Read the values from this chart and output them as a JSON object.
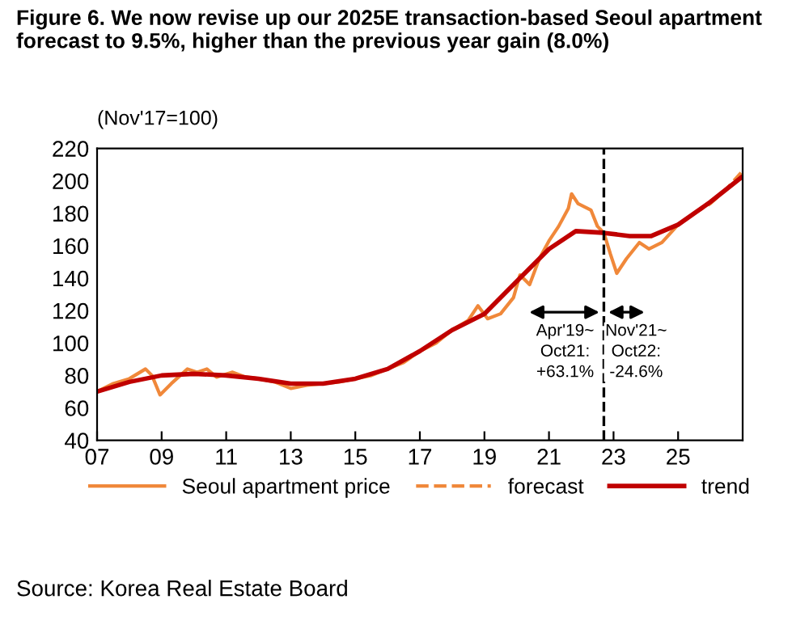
{
  "chart_data": {
    "type": "line",
    "title": "Figure 6. We now revise up our 2025E transaction-based Seoul apartment forecast to 9.5%, higher than the previous year gain (8.0%)",
    "ylabel": "(Nov'17=100)",
    "series": [
      {
        "name": "Seoul apartment price",
        "color": "#f0883a",
        "line_style": "solid",
        "x": [
          2007.0,
          2007.5,
          2008.0,
          2008.5,
          2008.7,
          2008.95,
          2009.3,
          2009.8,
          2010.1,
          2010.4,
          2010.7,
          2011.2,
          2011.6,
          2012.0,
          2012.5,
          2013.0,
          2013.5,
          2014.0,
          2014.5,
          2015.0,
          2015.5,
          2016.0,
          2016.5,
          2017.0,
          2017.5,
          2018.0,
          2018.5,
          2018.8,
          2019.1,
          2019.5,
          2019.9,
          2020.1,
          2020.4,
          2020.7,
          2021.0,
          2021.3,
          2021.6,
          2021.7,
          2021.9,
          2022.1,
          2022.3,
          2022.5,
          2022.7,
          2022.9,
          2023.1,
          2023.4,
          2023.8,
          2024.1,
          2024.5,
          2025.0
        ],
        "values": [
          70,
          75,
          78,
          84,
          80,
          68,
          75,
          84,
          82,
          84,
          79,
          82,
          79,
          78,
          76,
          72,
          74,
          75,
          76,
          78,
          80,
          84,
          88,
          95,
          100,
          108,
          114,
          123,
          115,
          118,
          128,
          142,
          136,
          152,
          163,
          172,
          183,
          192,
          186,
          184,
          182,
          172,
          168,
          155,
          143,
          152,
          162,
          158,
          162,
          173
        ]
      },
      {
        "name": "forecast",
        "color": "#f0883a",
        "line_style": "dashed",
        "x": [
          2025.0,
          2025.5,
          2026.0,
          2026.5,
          2026.95
        ],
        "values": [
          173,
          180,
          186,
          195,
          205
        ]
      },
      {
        "name": "trend",
        "color": "#c00000",
        "line_style": "solid",
        "x": [
          2007.0,
          2008.0,
          2009.0,
          2010.0,
          2011.0,
          2012.0,
          2013.0,
          2014.0,
          2015.0,
          2016.0,
          2017.0,
          2018.0,
          2019.0,
          2020.0,
          2021.0,
          2021.83,
          2022.67,
          2023.5,
          2024.17,
          2025.0,
          2026.0,
          2026.95
        ],
        "values": [
          70,
          76,
          80,
          81,
          80,
          78,
          75,
          75,
          78,
          84,
          95,
          108,
          118,
          138,
          158,
          169,
          168,
          166,
          166,
          173,
          187,
          202
        ]
      }
    ],
    "xlim": [
      2007,
      2027
    ],
    "xticks": [
      {
        "value": 2007,
        "label": "07"
      },
      {
        "value": 2009,
        "label": "09"
      },
      {
        "value": 2011,
        "label": "11"
      },
      {
        "value": 2013,
        "label": "13"
      },
      {
        "value": 2015,
        "label": "15"
      },
      {
        "value": 2017,
        "label": "17"
      },
      {
        "value": 2019,
        "label": "19"
      },
      {
        "value": 2021,
        "label": "21"
      },
      {
        "value": 2023,
        "label": "23"
      },
      {
        "value": 2025,
        "label": "25"
      }
    ],
    "ylim": [
      40,
      220
    ],
    "yticks": [
      40,
      60,
      80,
      100,
      120,
      140,
      160,
      180,
      200,
      220
    ],
    "ref_lines": [
      {
        "axis": "x",
        "value": 2022.7,
        "color": "#000000",
        "line_style": "dashed"
      }
    ],
    "annotations": [
      "Apr'19~\nOct21:\n+63.1%",
      "Nov'21~\nOct22:\n-24.6%",
      "Source: Korea Real Estate Board"
    ],
    "grid": false,
    "legend": "bottom"
  }
}
